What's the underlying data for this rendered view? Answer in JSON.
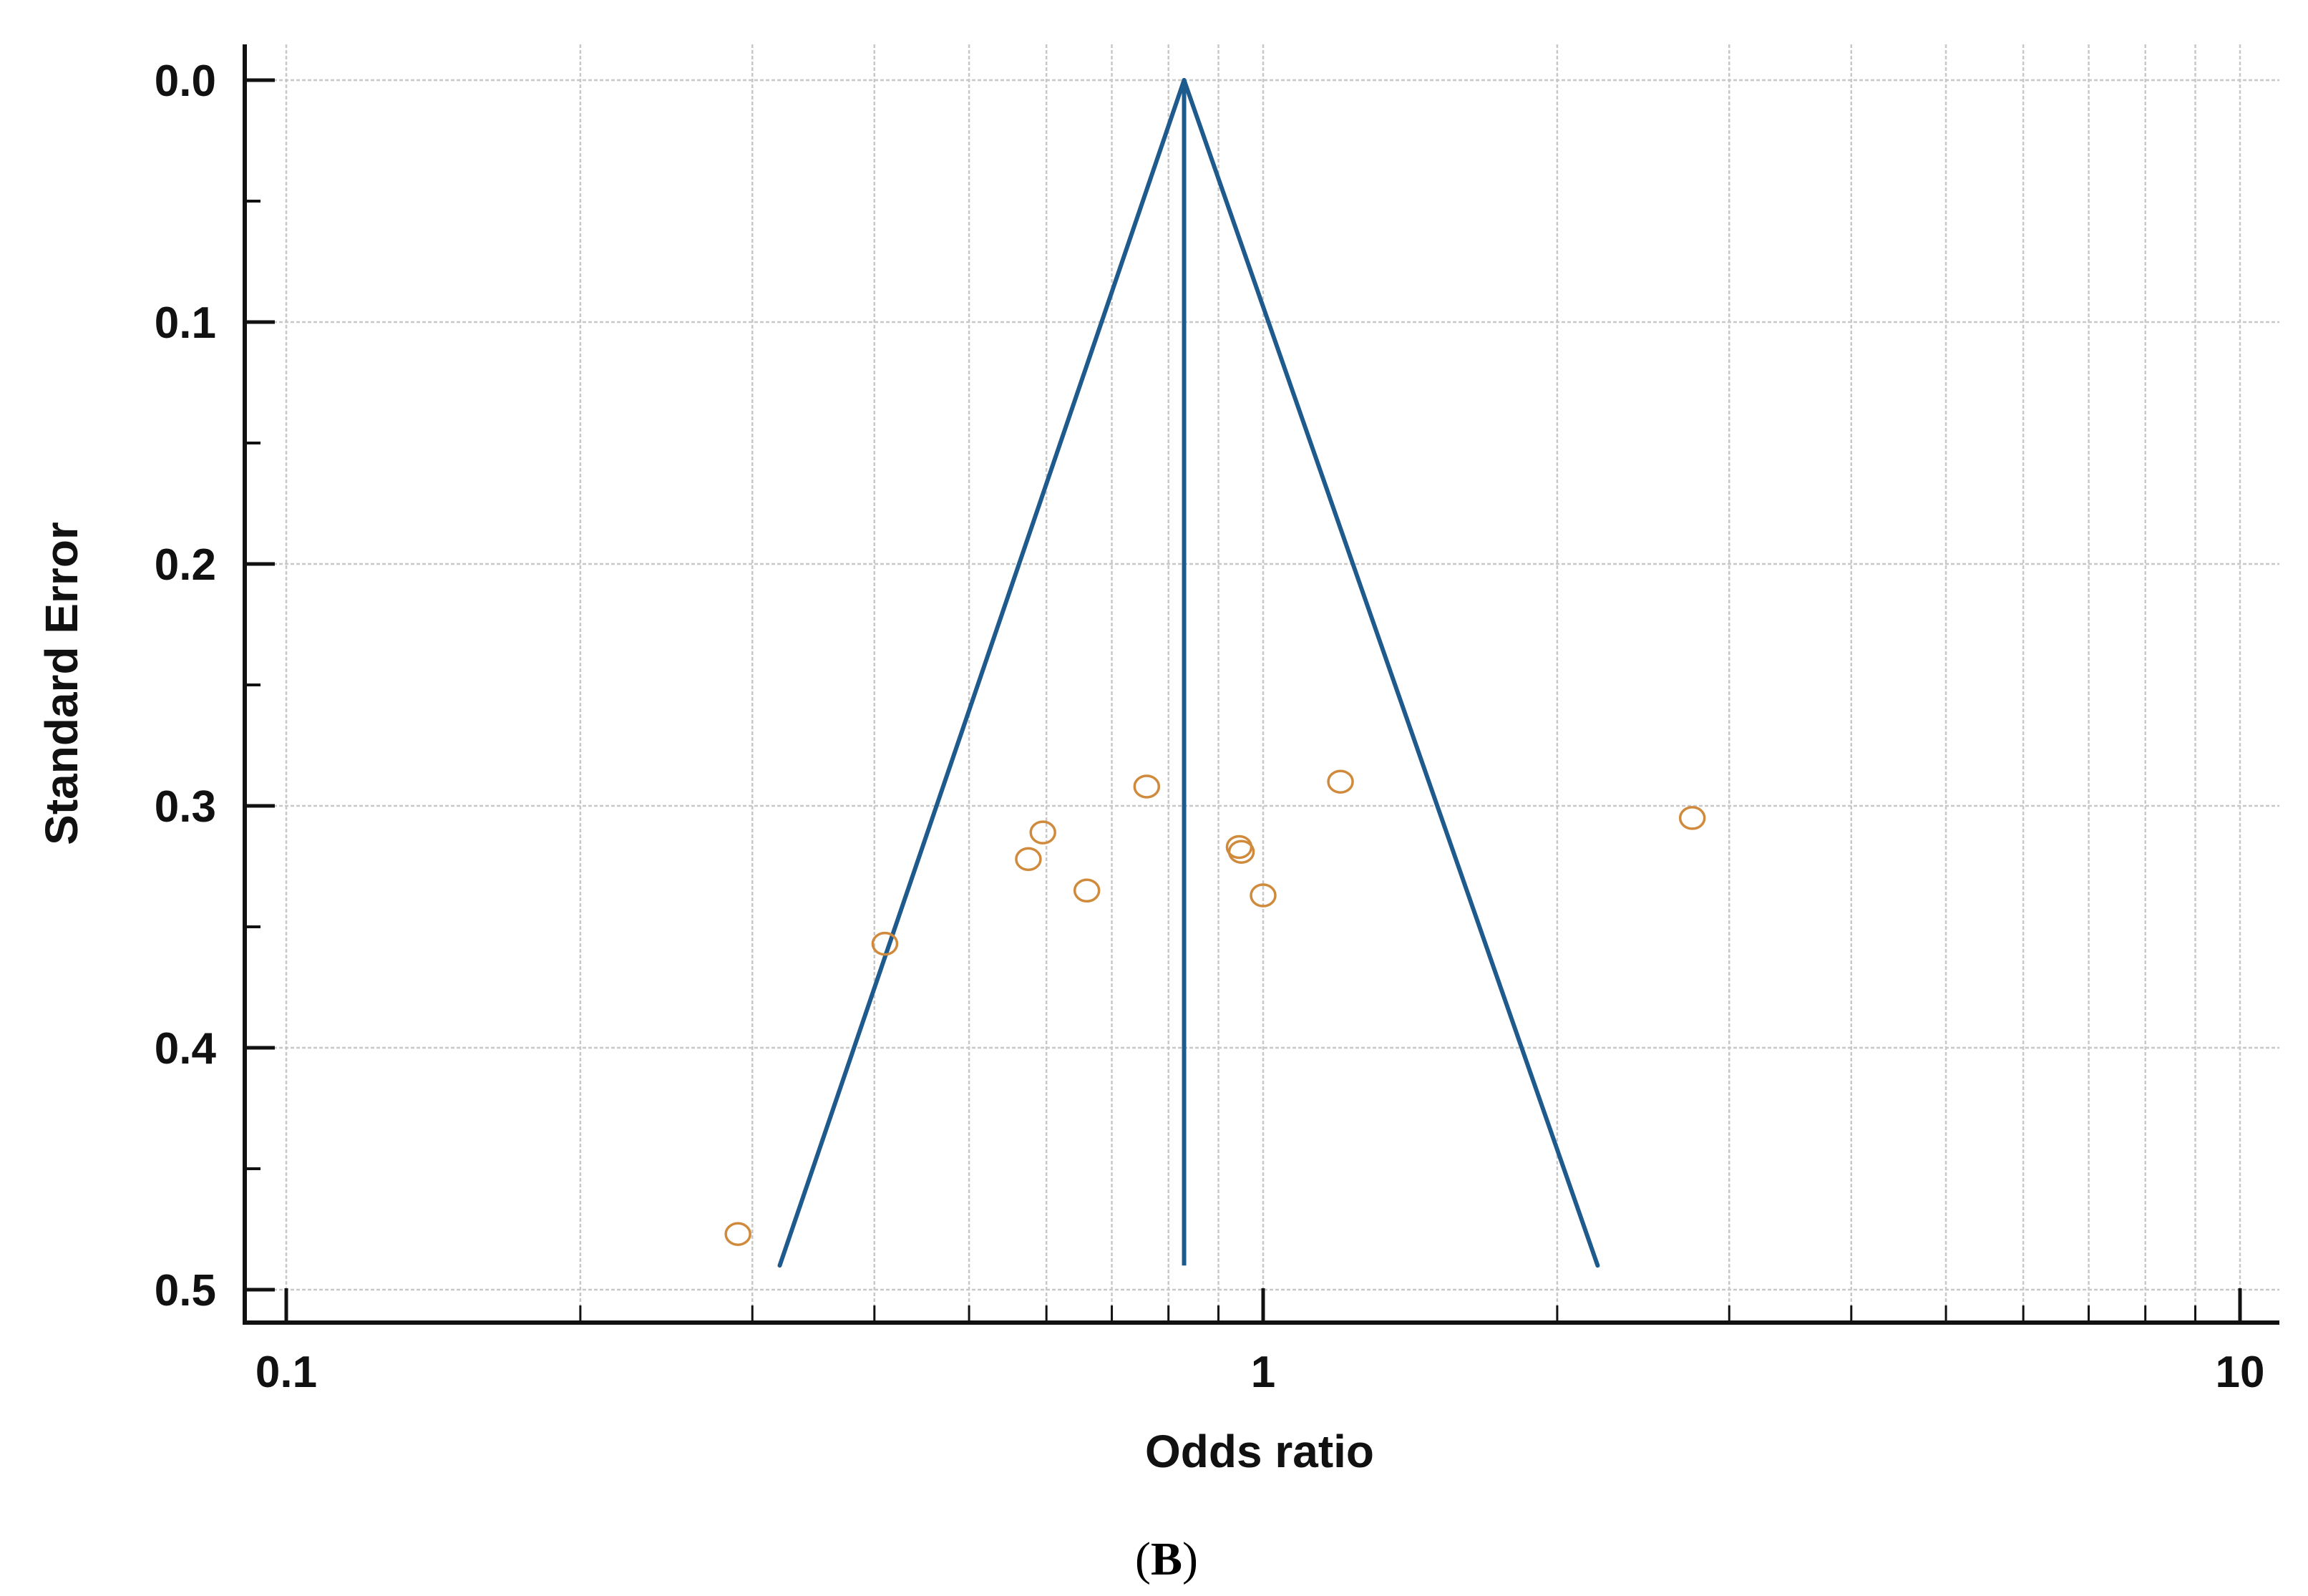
{
  "chart_data": {
    "type": "scatter",
    "title": "",
    "xlabel": "Odds ratio",
    "ylabel": "Standard Error",
    "x_scale": "log",
    "xlim": [
      0.1,
      10
    ],
    "ylim": [
      0.5,
      0.0
    ],
    "y_inverted": true,
    "x_ticks": [
      {
        "value": 0.1,
        "label": "0.1"
      },
      {
        "value": 1,
        "label": "1"
      },
      {
        "value": 10,
        "label": "10"
      }
    ],
    "y_ticks": [
      {
        "value": 0.0,
        "label": "0.0"
      },
      {
        "value": 0.1,
        "label": "0.1"
      },
      {
        "value": 0.2,
        "label": "0.2"
      },
      {
        "value": 0.3,
        "label": "0.3"
      },
      {
        "value": 0.4,
        "label": "0.4"
      },
      {
        "value": 0.5,
        "label": "0.5"
      }
    ],
    "grid": true,
    "pooled_estimate": 0.83,
    "funnel_bottom_se": 0.49,
    "funnel_left_or": 0.32,
    "funnel_right_or": 2.2,
    "points": [
      {
        "or": 0.29,
        "se": 0.477
      },
      {
        "or": 0.41,
        "se": 0.357
      },
      {
        "or": 0.575,
        "se": 0.322
      },
      {
        "or": 0.595,
        "se": 0.311
      },
      {
        "or": 0.66,
        "se": 0.335
      },
      {
        "or": 0.76,
        "se": 0.292
      },
      {
        "or": 0.945,
        "se": 0.317
      },
      {
        "or": 0.95,
        "se": 0.319
      },
      {
        "or": 1.0,
        "se": 0.337
      },
      {
        "or": 1.2,
        "se": 0.29
      },
      {
        "or": 2.75,
        "se": 0.305
      }
    ],
    "colors": {
      "funnel": "#1f5a8c",
      "points": "#d08a3c",
      "grid": "#c8c8c8",
      "axis": "#111111"
    }
  },
  "caption": {
    "open": "(",
    "letter": "B",
    "close": ")"
  }
}
